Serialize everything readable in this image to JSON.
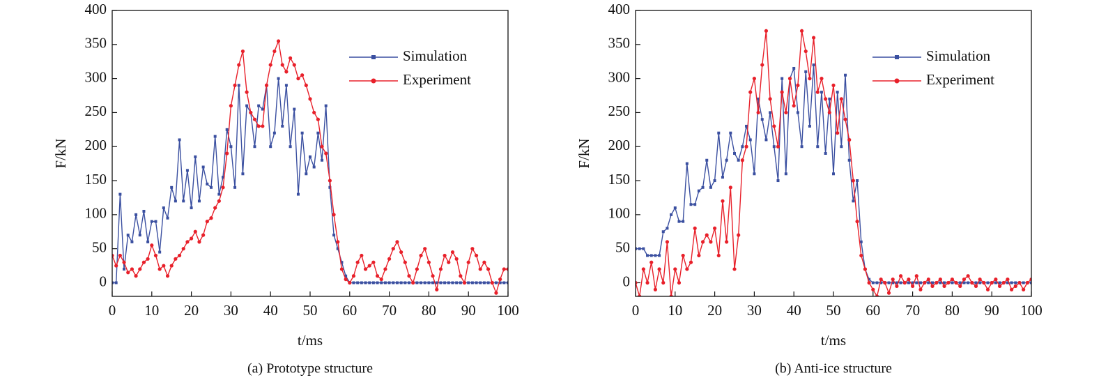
{
  "chart_data": [
    {
      "type": "line",
      "title": "(a) Prototype structure",
      "xlabel": "t/ms",
      "ylabel": "F/kN",
      "x": [
        0,
        1,
        2,
        3,
        4,
        5,
        6,
        7,
        8,
        9,
        10,
        11,
        12,
        13,
        14,
        15,
        16,
        17,
        18,
        19,
        20,
        21,
        22,
        23,
        24,
        25,
        26,
        27,
        28,
        29,
        30,
        31,
        32,
        33,
        34,
        35,
        36,
        37,
        38,
        39,
        40,
        41,
        42,
        43,
        44,
        45,
        46,
        47,
        48,
        49,
        50,
        51,
        52,
        53,
        54,
        55,
        56,
        57,
        58,
        59,
        60,
        61,
        62,
        63,
        64,
        65,
        66,
        67,
        68,
        69,
        70,
        71,
        72,
        73,
        74,
        75,
        76,
        77,
        78,
        79,
        80,
        81,
        82,
        83,
        84,
        85,
        86,
        87,
        88,
        89,
        90,
        91,
        92,
        93,
        94,
        95,
        96,
        97,
        98,
        99,
        100
      ],
      "series": [
        {
          "name": "Simulation",
          "color": "#3a4fa0",
          "marker": "square",
          "values": [
            0,
            0,
            130,
            20,
            70,
            60,
            100,
            70,
            105,
            60,
            90,
            90,
            45,
            110,
            95,
            140,
            120,
            210,
            120,
            165,
            110,
            185,
            120,
            170,
            145,
            140,
            215,
            130,
            155,
            225,
            200,
            140,
            290,
            160,
            260,
            250,
            200,
            260,
            255,
            290,
            200,
            220,
            300,
            230,
            290,
            200,
            255,
            130,
            220,
            160,
            185,
            170,
            220,
            180,
            260,
            140,
            70,
            50,
            30,
            10,
            0,
            0,
            0,
            0,
            0,
            0,
            0,
            0,
            0,
            0,
            0,
            0,
            0,
            0,
            0,
            0,
            0,
            0,
            0,
            0,
            0,
            0,
            0,
            0,
            0,
            0,
            0,
            0,
            0,
            0,
            0,
            0,
            0,
            0,
            0,
            0,
            0,
            0,
            0,
            0,
            0
          ]
        },
        {
          "name": "Experiment",
          "color": "#e8202a",
          "marker": "circle",
          "values": [
            40,
            25,
            40,
            30,
            15,
            20,
            10,
            20,
            30,
            35,
            55,
            40,
            20,
            25,
            10,
            25,
            35,
            40,
            50,
            60,
            65,
            75,
            60,
            70,
            90,
            95,
            110,
            120,
            140,
            190,
            260,
            290,
            320,
            340,
            280,
            250,
            240,
            230,
            230,
            290,
            320,
            340,
            355,
            320,
            310,
            330,
            320,
            300,
            305,
            290,
            270,
            250,
            240,
            200,
            190,
            150,
            100,
            60,
            20,
            5,
            0,
            10,
            30,
            40,
            20,
            25,
            30,
            10,
            5,
            20,
            35,
            50,
            60,
            45,
            30,
            10,
            0,
            20,
            40,
            50,
            30,
            10,
            -10,
            20,
            40,
            30,
            45,
            35,
            10,
            0,
            30,
            50,
            40,
            20,
            30,
            20,
            0,
            -15,
            5,
            20,
            20
          ]
        }
      ],
      "xlim": [
        0,
        100
      ],
      "ylim": [
        -20,
        400
      ],
      "xticks": [
        0,
        10,
        20,
        30,
        40,
        50,
        60,
        70,
        80,
        90,
        100
      ],
      "yticks": [
        0,
        50,
        100,
        150,
        200,
        250,
        300,
        350,
        400
      ],
      "legend": "upper right"
    },
    {
      "type": "line",
      "title": "(b) Anti-ice structure",
      "xlabel": "t/ms",
      "ylabel": "F/kN",
      "x": [
        0,
        1,
        2,
        3,
        4,
        5,
        6,
        7,
        8,
        9,
        10,
        11,
        12,
        13,
        14,
        15,
        16,
        17,
        18,
        19,
        20,
        21,
        22,
        23,
        24,
        25,
        26,
        27,
        28,
        29,
        30,
        31,
        32,
        33,
        34,
        35,
        36,
        37,
        38,
        39,
        40,
        41,
        42,
        43,
        44,
        45,
        46,
        47,
        48,
        49,
        50,
        51,
        52,
        53,
        54,
        55,
        56,
        57,
        58,
        59,
        60,
        61,
        62,
        63,
        64,
        65,
        66,
        67,
        68,
        69,
        70,
        71,
        72,
        73,
        74,
        75,
        76,
        77,
        78,
        79,
        80,
        81,
        82,
        83,
        84,
        85,
        86,
        87,
        88,
        89,
        90,
        91,
        92,
        93,
        94,
        95,
        96,
        97,
        98,
        99,
        100
      ],
      "series": [
        {
          "name": "Simulation",
          "color": "#3a4fa0",
          "marker": "square",
          "values": [
            50,
            50,
            50,
            40,
            40,
            40,
            40,
            75,
            80,
            100,
            110,
            90,
            90,
            175,
            115,
            115,
            135,
            140,
            180,
            140,
            150,
            220,
            155,
            180,
            220,
            190,
            180,
            200,
            230,
            210,
            160,
            270,
            240,
            210,
            250,
            200,
            150,
            300,
            160,
            300,
            315,
            250,
            200,
            310,
            230,
            320,
            200,
            280,
            190,
            270,
            160,
            280,
            200,
            305,
            180,
            120,
            150,
            60,
            20,
            5,
            0,
            0,
            0,
            0,
            0,
            0,
            0,
            0,
            0,
            0,
            0,
            0,
            0,
            0,
            0,
            0,
            0,
            0,
            0,
            0,
            0,
            0,
            0,
            0,
            0,
            0,
            0,
            0,
            0,
            0,
            0,
            0,
            0,
            0,
            0,
            0,
            0,
            0,
            0,
            0,
            0
          ]
        },
        {
          "name": "Experiment",
          "color": "#e8202a",
          "marker": "circle",
          "values": [
            0,
            -20,
            20,
            0,
            30,
            -10,
            20,
            0,
            60,
            -20,
            20,
            0,
            40,
            20,
            30,
            80,
            40,
            60,
            70,
            60,
            80,
            40,
            120,
            60,
            140,
            20,
            70,
            180,
            200,
            280,
            300,
            250,
            320,
            370,
            270,
            230,
            200,
            280,
            250,
            300,
            260,
            290,
            370,
            340,
            300,
            360,
            280,
            300,
            270,
            250,
            290,
            220,
            270,
            240,
            210,
            150,
            90,
            40,
            20,
            0,
            -10,
            -20,
            5,
            0,
            -15,
            5,
            -5,
            10,
            0,
            5,
            -5,
            10,
            -10,
            0,
            5,
            -5,
            0,
            5,
            -5,
            0,
            5,
            0,
            -5,
            5,
            10,
            0,
            -5,
            5,
            0,
            -10,
            0,
            5,
            -5,
            0,
            5,
            -10,
            -5,
            0,
            -10,
            0,
            5
          ]
        }
      ],
      "xlim": [
        0,
        100
      ],
      "ylim": [
        -20,
        400
      ],
      "xticks": [
        0,
        10,
        20,
        30,
        40,
        50,
        60,
        70,
        80,
        90,
        100
      ],
      "yticks": [
        0,
        50,
        100,
        150,
        200,
        250,
        300,
        350,
        400
      ],
      "legend": "upper right"
    }
  ]
}
